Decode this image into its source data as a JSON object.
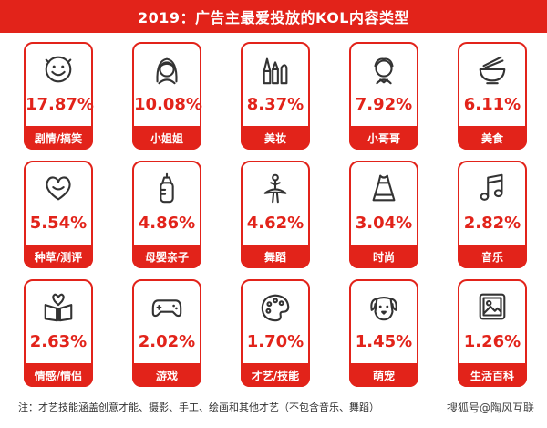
{
  "title": "2019：广告主最爱投放的KOL内容类型",
  "colors": {
    "accent": "#e2231a",
    "background": "#ffffff",
    "icon": "#333333"
  },
  "chart_data": {
    "type": "table",
    "title": "2019：广告主最爱投放的KOL内容类型",
    "categories": [
      "剧情/搞笑",
      "小姐姐",
      "美妆",
      "小哥哥",
      "美食",
      "种草/测评",
      "母婴亲子",
      "舞蹈",
      "时尚",
      "音乐",
      "情感/情侣",
      "游戏",
      "才艺/技能",
      "萌宠",
      "生活百科"
    ],
    "values": [
      "17.87%",
      "10.08%",
      "8.37%",
      "7.92%",
      "6.11%",
      "5.54%",
      "4.86%",
      "4.62%",
      "3.04%",
      "2.82%",
      "2.63%",
      "2.02%",
      "1.70%",
      "1.45%",
      "1.26%"
    ],
    "icons": [
      "smiley-face-icon",
      "girl-icon",
      "makeup-icon",
      "boy-icon",
      "bowl-icon",
      "heart-icon",
      "baby-bottle-icon",
      "ballerina-icon",
      "dress-icon",
      "music-note-icon",
      "couple-icon",
      "gamepad-icon",
      "palette-icon",
      "dog-icon",
      "picture-icon"
    ]
  },
  "note": "注：才艺技能涵盖创意才能、摄影、手工、绘画和其他才艺（不包含音乐、舞蹈）",
  "watermark": "搜狐号@陶风互联"
}
